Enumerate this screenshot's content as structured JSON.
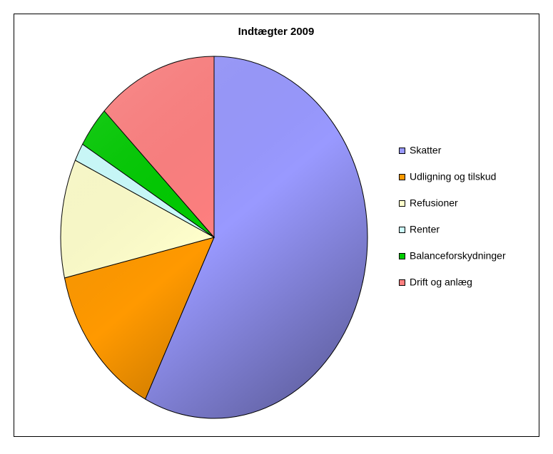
{
  "chart_data": {
    "type": "pie",
    "title": "Indtægter 2009",
    "categories": [
      "Skatter",
      "Udligning og tilskud",
      "Refusioner",
      "Renter",
      "Balanceforskydninger",
      "Drift og anlæg"
    ],
    "values": [
      57.4,
      14.0,
      10.6,
      1.6,
      3.7,
      12.7
    ],
    "colors": [
      "#9999ff",
      "#ff9900",
      "#ffffcc",
      "#ccffff",
      "#00cc00",
      "#ff8080"
    ],
    "legend": "right"
  }
}
